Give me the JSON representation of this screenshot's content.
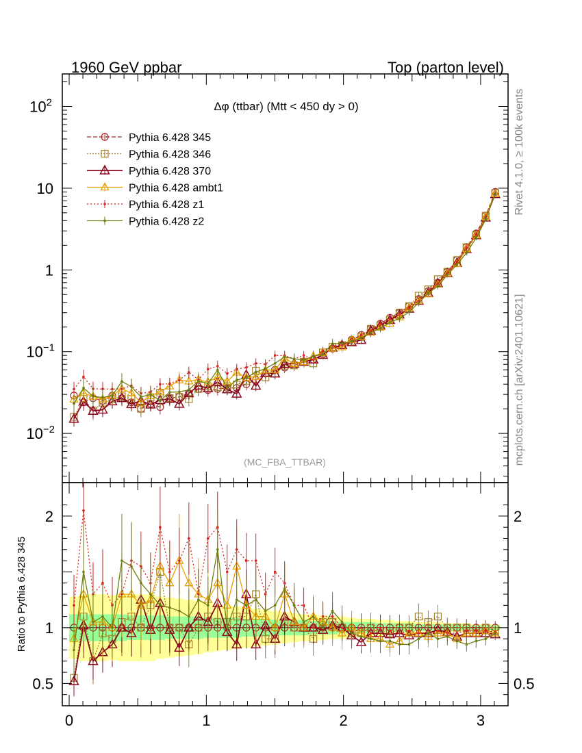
{
  "chart_data": {
    "type": "line",
    "header_left": "1960 GeV ppbar",
    "header_right": "Top (parton level)",
    "title": "Δφ (ttbar) (Mtt < 450 dy > 0)",
    "analysis_label": "(MC_FBA_TTBAR)",
    "side_label_top": "Rivet 4.1.0, ≥ 100k events",
    "side_label_bottom": "mcplots.cern.ch [arXiv:2401.10621]",
    "main_yscale": "log",
    "main_ylim": [
      0.0025,
      250
    ],
    "main_yticks": [
      {
        "value": 100,
        "label": "10",
        "exp": "2"
      },
      {
        "value": 10,
        "label": "10",
        "exp": ""
      },
      {
        "value": 1,
        "label": "1",
        "exp": ""
      },
      {
        "value": 0.1,
        "label": "10",
        "exp": "−1"
      },
      {
        "value": 0.01,
        "label": "10",
        "exp": "−2"
      }
    ],
    "xlim": [
      -0.05,
      3.2
    ],
    "xticks": [
      {
        "value": 0,
        "label": "0"
      },
      {
        "value": 1,
        "label": "1"
      },
      {
        "value": 2,
        "label": "2"
      },
      {
        "value": 3,
        "label": "3"
      }
    ],
    "ratio_ylabel": "Ratio to Pythia 6.428 345",
    "ratio_ylim": [
      0.3,
      2.3
    ],
    "ratio_yticks": [
      {
        "value": 0.5,
        "label": "0.5"
      },
      {
        "value": 1,
        "label": "1"
      },
      {
        "value": 2,
        "label": "2"
      }
    ],
    "x": [
      0.0349,
      0.1047,
      0.1745,
      0.2443,
      0.3142,
      0.384,
      0.4538,
      0.5236,
      0.5934,
      0.6632,
      0.733,
      0.8029,
      0.8727,
      0.9425,
      1.0123,
      1.0821,
      1.1519,
      1.2217,
      1.2915,
      1.3614,
      1.4312,
      1.501,
      1.5708,
      1.6406,
      1.7104,
      1.7802,
      1.85,
      1.9199,
      1.9897,
      2.0595,
      2.1293,
      2.1991,
      2.2689,
      2.3387,
      2.4086,
      2.4784,
      2.5482,
      2.618,
      2.6878,
      2.7576,
      2.8274,
      2.8972,
      2.9671,
      3.0369,
      3.1067
    ],
    "band_inner": [
      0.12,
      0.12,
      0.12,
      0.12,
      0.12,
      0.12,
      0.11,
      0.11,
      0.11,
      0.11,
      0.1,
      0.1,
      0.1,
      0.1,
      0.09,
      0.09,
      0.09,
      0.09,
      0.08,
      0.08,
      0.08,
      0.07,
      0.07,
      0.07,
      0.07,
      0.06,
      0.06,
      0.06,
      0.05,
      0.05,
      0.05,
      0.05,
      0.04,
      0.04,
      0.04,
      0.04,
      0.03,
      0.03,
      0.03,
      0.03,
      0.03,
      0.02,
      0.02,
      0.02,
      0.02
    ],
    "band_outer": [
      0.28,
      0.3,
      0.3,
      0.3,
      0.29,
      0.3,
      0.3,
      0.3,
      0.3,
      0.28,
      0.27,
      0.26,
      0.25,
      0.24,
      0.22,
      0.21,
      0.2,
      0.19,
      0.18,
      0.17,
      0.16,
      0.15,
      0.14,
      0.13,
      0.12,
      0.12,
      0.11,
      0.1,
      0.1,
      0.09,
      0.08,
      0.08,
      0.07,
      0.07,
      0.06,
      0.06,
      0.05,
      0.05,
      0.05,
      0.04,
      0.04,
      0.04,
      0.03,
      0.03,
      0.03
    ],
    "series": [
      {
        "name": "Pythia 6.428 345",
        "color": "#a52a2a",
        "dash": "6,3",
        "marker": "circle",
        "values": [
          0.029,
          0.024,
          0.027,
          0.025,
          0.029,
          0.027,
          0.024,
          0.02,
          0.023,
          0.021,
          0.027,
          0.028,
          0.031,
          0.035,
          0.034,
          0.035,
          0.036,
          0.036,
          0.04,
          0.045,
          0.054,
          0.06,
          0.064,
          0.068,
          0.075,
          0.08,
          0.093,
          0.109,
          0.12,
          0.14,
          0.16,
          0.19,
          0.22,
          0.26,
          0.3,
          0.36,
          0.44,
          0.55,
          0.7,
          0.95,
          1.32,
          1.9,
          2.8,
          4.6,
          9.0
        ],
        "ratio": [
          1,
          1,
          1,
          1,
          1,
          1,
          1,
          1,
          1,
          1,
          1,
          1,
          1,
          1,
          1,
          1,
          1,
          1,
          1,
          1,
          1,
          1,
          1,
          1,
          1,
          1,
          1,
          1,
          1,
          1,
          1,
          1,
          1,
          1,
          1,
          1,
          1,
          1,
          1,
          1,
          1,
          1,
          1,
          1,
          1
        ]
      },
      {
        "name": "Pythia 6.428 346",
        "color": "#a0822d",
        "dash": "2,2",
        "marker": "square",
        "ratio": [
          0.55,
          1.1,
          0.7,
          0.95,
          0.9,
          1.05,
          1.1,
          1.0,
          1.2,
          1.5,
          1.0,
          1.0,
          0.85,
          1.0,
          1.1,
          1.05,
          1.05,
          1.1,
          1.1,
          1.3,
          0.9,
          0.9,
          1.05,
          1.0,
          1.0,
          0.9,
          1.05,
          1.05,
          1.0,
          0.95,
          0.95,
          1.0,
          0.95,
          0.95,
          1.0,
          1.0,
          1.1,
          1.05,
          1.1,
          1.0,
          1.0,
          1.0,
          0.95,
          1.0,
          0.97
        ]
      },
      {
        "name": "Pythia 6.428 370",
        "color": "#8b0a1e",
        "dash": "",
        "marker": "triangle-open",
        "ratio": [
          0.52,
          1.02,
          0.7,
          0.78,
          0.85,
          1.0,
          0.95,
          1.25,
          0.98,
          1.22,
          0.98,
          0.82,
          1.0,
          1.1,
          1.05,
          1.22,
          0.96,
          0.85,
          1.3,
          0.85,
          1.02,
          0.9,
          1.1,
          1.05,
          1.0,
          1.0,
          0.98,
          1.02,
          1.0,
          0.93,
          0.87,
          0.95,
          0.95,
          0.94,
          0.95,
          0.93,
          0.95,
          0.95,
          0.98,
          0.96,
          0.92,
          0.95,
          0.95,
          0.95,
          0.94
        ]
      },
      {
        "name": "Pythia 6.428 ambt1",
        "color": "#e6a000",
        "dash": "",
        "marker": "triangle",
        "ratio": [
          0.9,
          1.3,
          1.05,
          1.05,
          1.0,
          1.3,
          1.3,
          1.2,
          1.25,
          1.55,
          1.4,
          1.6,
          1.4,
          1.3,
          1.25,
          1.4,
          1.2,
          1.55,
          1.2,
          1.1,
          1.1,
          1.0,
          1.3,
          1.05,
          1.0,
          1.1,
          1.05,
          1.0,
          0.95,
          1.0,
          0.95,
          0.9,
          0.9,
          0.85,
          0.88,
          0.95,
          0.95,
          0.92,
          0.95,
          0.95,
          0.9,
          0.95,
          0.95,
          0.97,
          0.95
        ]
      },
      {
        "name": "Pythia 6.428 z1",
        "color": "#d42020",
        "dash": "2,3",
        "marker": "dot",
        "ratio": [
          1.2,
          2.05,
          1.3,
          1.4,
          1.2,
          1.3,
          1.6,
          1.55,
          1.4,
          1.9,
          1.5,
          1.6,
          1.8,
          1.3,
          1.8,
          1.9,
          1.5,
          1.7,
          1.6,
          1.6,
          1.3,
          1.5,
          1.4,
          1.2,
          1.2,
          1.0,
          1.1,
          1.1,
          1.0,
          0.95,
          1.0,
          0.95,
          1.0,
          0.97,
          0.95,
          0.97,
          0.95,
          0.95,
          0.97,
          0.95,
          0.95,
          0.97,
          0.97,
          0.97,
          0.96
        ]
      },
      {
        "name": "Pythia 6.428 z2",
        "color": "#6b7d10",
        "dash": "",
        "marker": "dot",
        "ratio": [
          0.8,
          1.5,
          1.05,
          1.1,
          1.0,
          1.6,
          1.55,
          1.4,
          1.3,
          1.2,
          1.18,
          1.15,
          1.1,
          1.25,
          1.2,
          1.7,
          1.0,
          1.25,
          1.2,
          1.25,
          1.15,
          1.2,
          1.35,
          1.2,
          1.05,
          1.1,
          1.0,
          1.15,
          1.05,
          0.95,
          0.92,
          0.9,
          0.88,
          0.88,
          0.85,
          0.85,
          0.9,
          0.95,
          0.9,
          0.92,
          0.88,
          0.85,
          0.88,
          0.9,
          0.95
        ]
      }
    ]
  }
}
